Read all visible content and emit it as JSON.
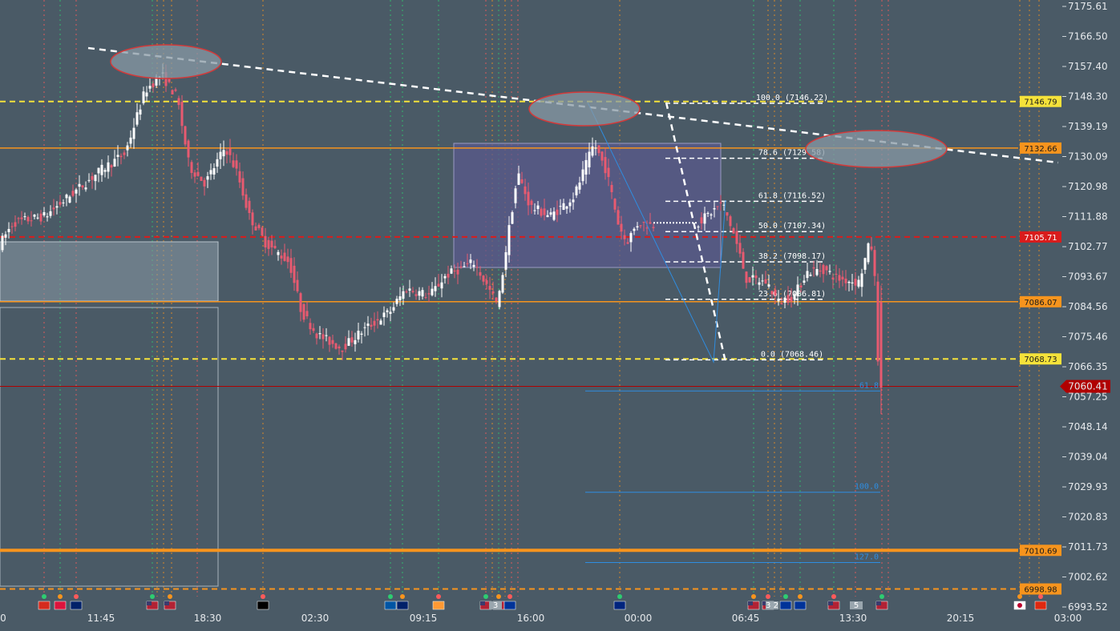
{
  "chart_data": {
    "type": "candlestick",
    "y_axis": {
      "ylim": [
        6993.52,
        7175.61
      ],
      "ticks": [
        "7175.61",
        "7166.50",
        "7157.40",
        "7148.30",
        "7139.19",
        "7130.09",
        "7120.98",
        "7111.88",
        "7102.77",
        "7093.67",
        "7084.56",
        "7075.46",
        "7066.35",
        "7057.25",
        "7048.14",
        "7039.04",
        "7029.93",
        "7020.83",
        "7011.73",
        "7002.62",
        "6993.52"
      ]
    },
    "x_axis": {
      "ticks": [
        "0",
        "11:45",
        "18:30",
        "02:30",
        "09:15",
        "16:00",
        "00:00",
        "06:45",
        "13:30",
        "20:15",
        "03:00"
      ]
    },
    "last_price": {
      "value": "7060.41",
      "color": "#b00000"
    },
    "price_levels": [
      {
        "label": "7146.79",
        "value": 7146.79,
        "style": "dashed",
        "color": "#f5e23a",
        "tag_color": "#f5e23a"
      },
      {
        "label": "7132.66",
        "value": 7132.66,
        "style": "solid",
        "color": "#f7941d",
        "tag_color": "#f7941d"
      },
      {
        "label": "7105.71",
        "value": 7105.71,
        "style": "dashed",
        "color": "#d91c1c",
        "tag_color": "#d91c1c"
      },
      {
        "label": "7086.07",
        "value": 7086.07,
        "style": "solid",
        "color": "#f7941d",
        "tag_color": "#f7941d"
      },
      {
        "label": "7068.73",
        "value": 7068.73,
        "style": "dashed",
        "color": "#f5e23a",
        "tag_color": "#f5e23a"
      },
      {
        "label": "7010.69",
        "value": 7010.69,
        "style": "solid-thick",
        "color": "#f7941d",
        "tag_color": "#f7941d"
      },
      {
        "label": "6998.98",
        "value": 6998.98,
        "style": "dashed",
        "color": "#f7941d",
        "tag_color": "#f7941d"
      }
    ],
    "fib_retracement": [
      {
        "label": "100.0 (7146.22)",
        "value": 7146.22
      },
      {
        "label": "78.6 (7129.58)",
        "value": 7129.58
      },
      {
        "label": "61.8 (7116.52)",
        "value": 7116.52
      },
      {
        "label": "50.0 (7107.34)",
        "value": 7107.34
      },
      {
        "label": "38.2 (7098.17)",
        "value": 7098.17
      },
      {
        "label": "23.6 (7086.81)",
        "value": 7086.81
      },
      {
        "label": "0.0 (7068.46)",
        "value": 7068.46
      }
    ],
    "fib_extension": [
      {
        "label": "61.8",
        "value": 7059.0
      },
      {
        "label": "100.0",
        "value": 7028.3
      },
      {
        "label": "127.0",
        "value": 7007.0
      }
    ],
    "event_flags": [
      "CZ",
      "PL",
      "UK",
      "US",
      "US",
      "DE",
      "FR",
      "UK",
      "IN",
      "US",
      "US",
      "EU",
      "NZ",
      "US",
      "US",
      "EU",
      "EU",
      "US",
      "US",
      "JP",
      "CN"
    ],
    "event_badges": [
      "3",
      "3 2",
      "5"
    ],
    "colors": {
      "background": "#4a5a66",
      "up_candle": "#ffffff",
      "down_candle": "#e85a70",
      "trendline": "#ffffff",
      "zone_fill": "#5a5a8c",
      "ellipse": "#8899a6",
      "ellipse_border": "#d23a3a",
      "fib_blue": "#2f8de0"
    }
  }
}
